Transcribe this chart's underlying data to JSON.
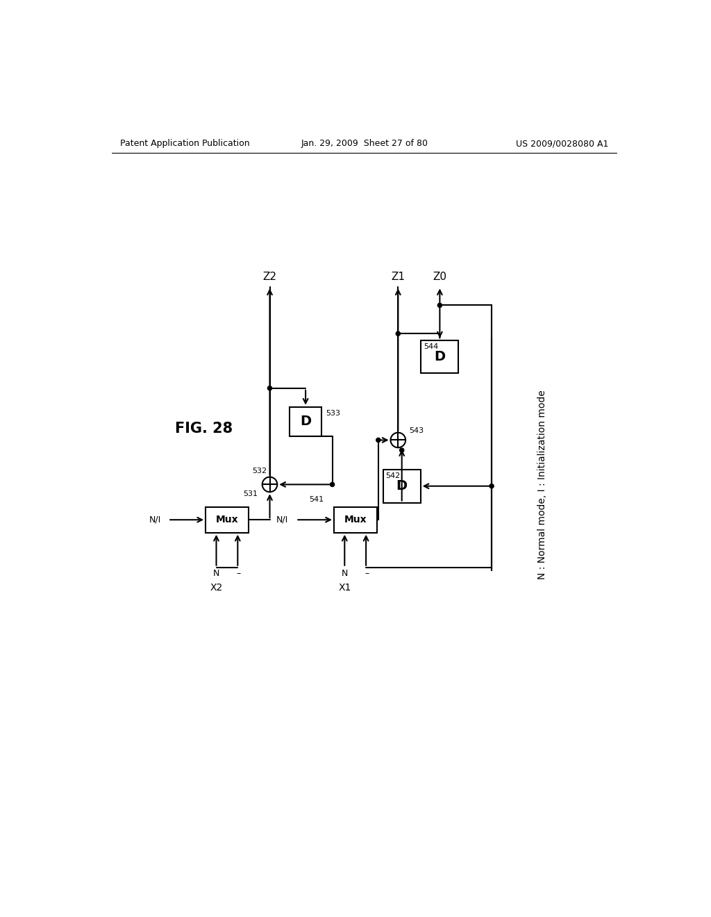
{
  "title_left": "Patent Application Publication",
  "title_center": "Jan. 29, 2009  Sheet 27 of 80",
  "title_right": "US 2009/0028080 A1",
  "fig_label": "FIG. 28",
  "note": "N : Normal mode, I : Initialization mode",
  "background": "#ffffff",
  "line_color": "#000000"
}
